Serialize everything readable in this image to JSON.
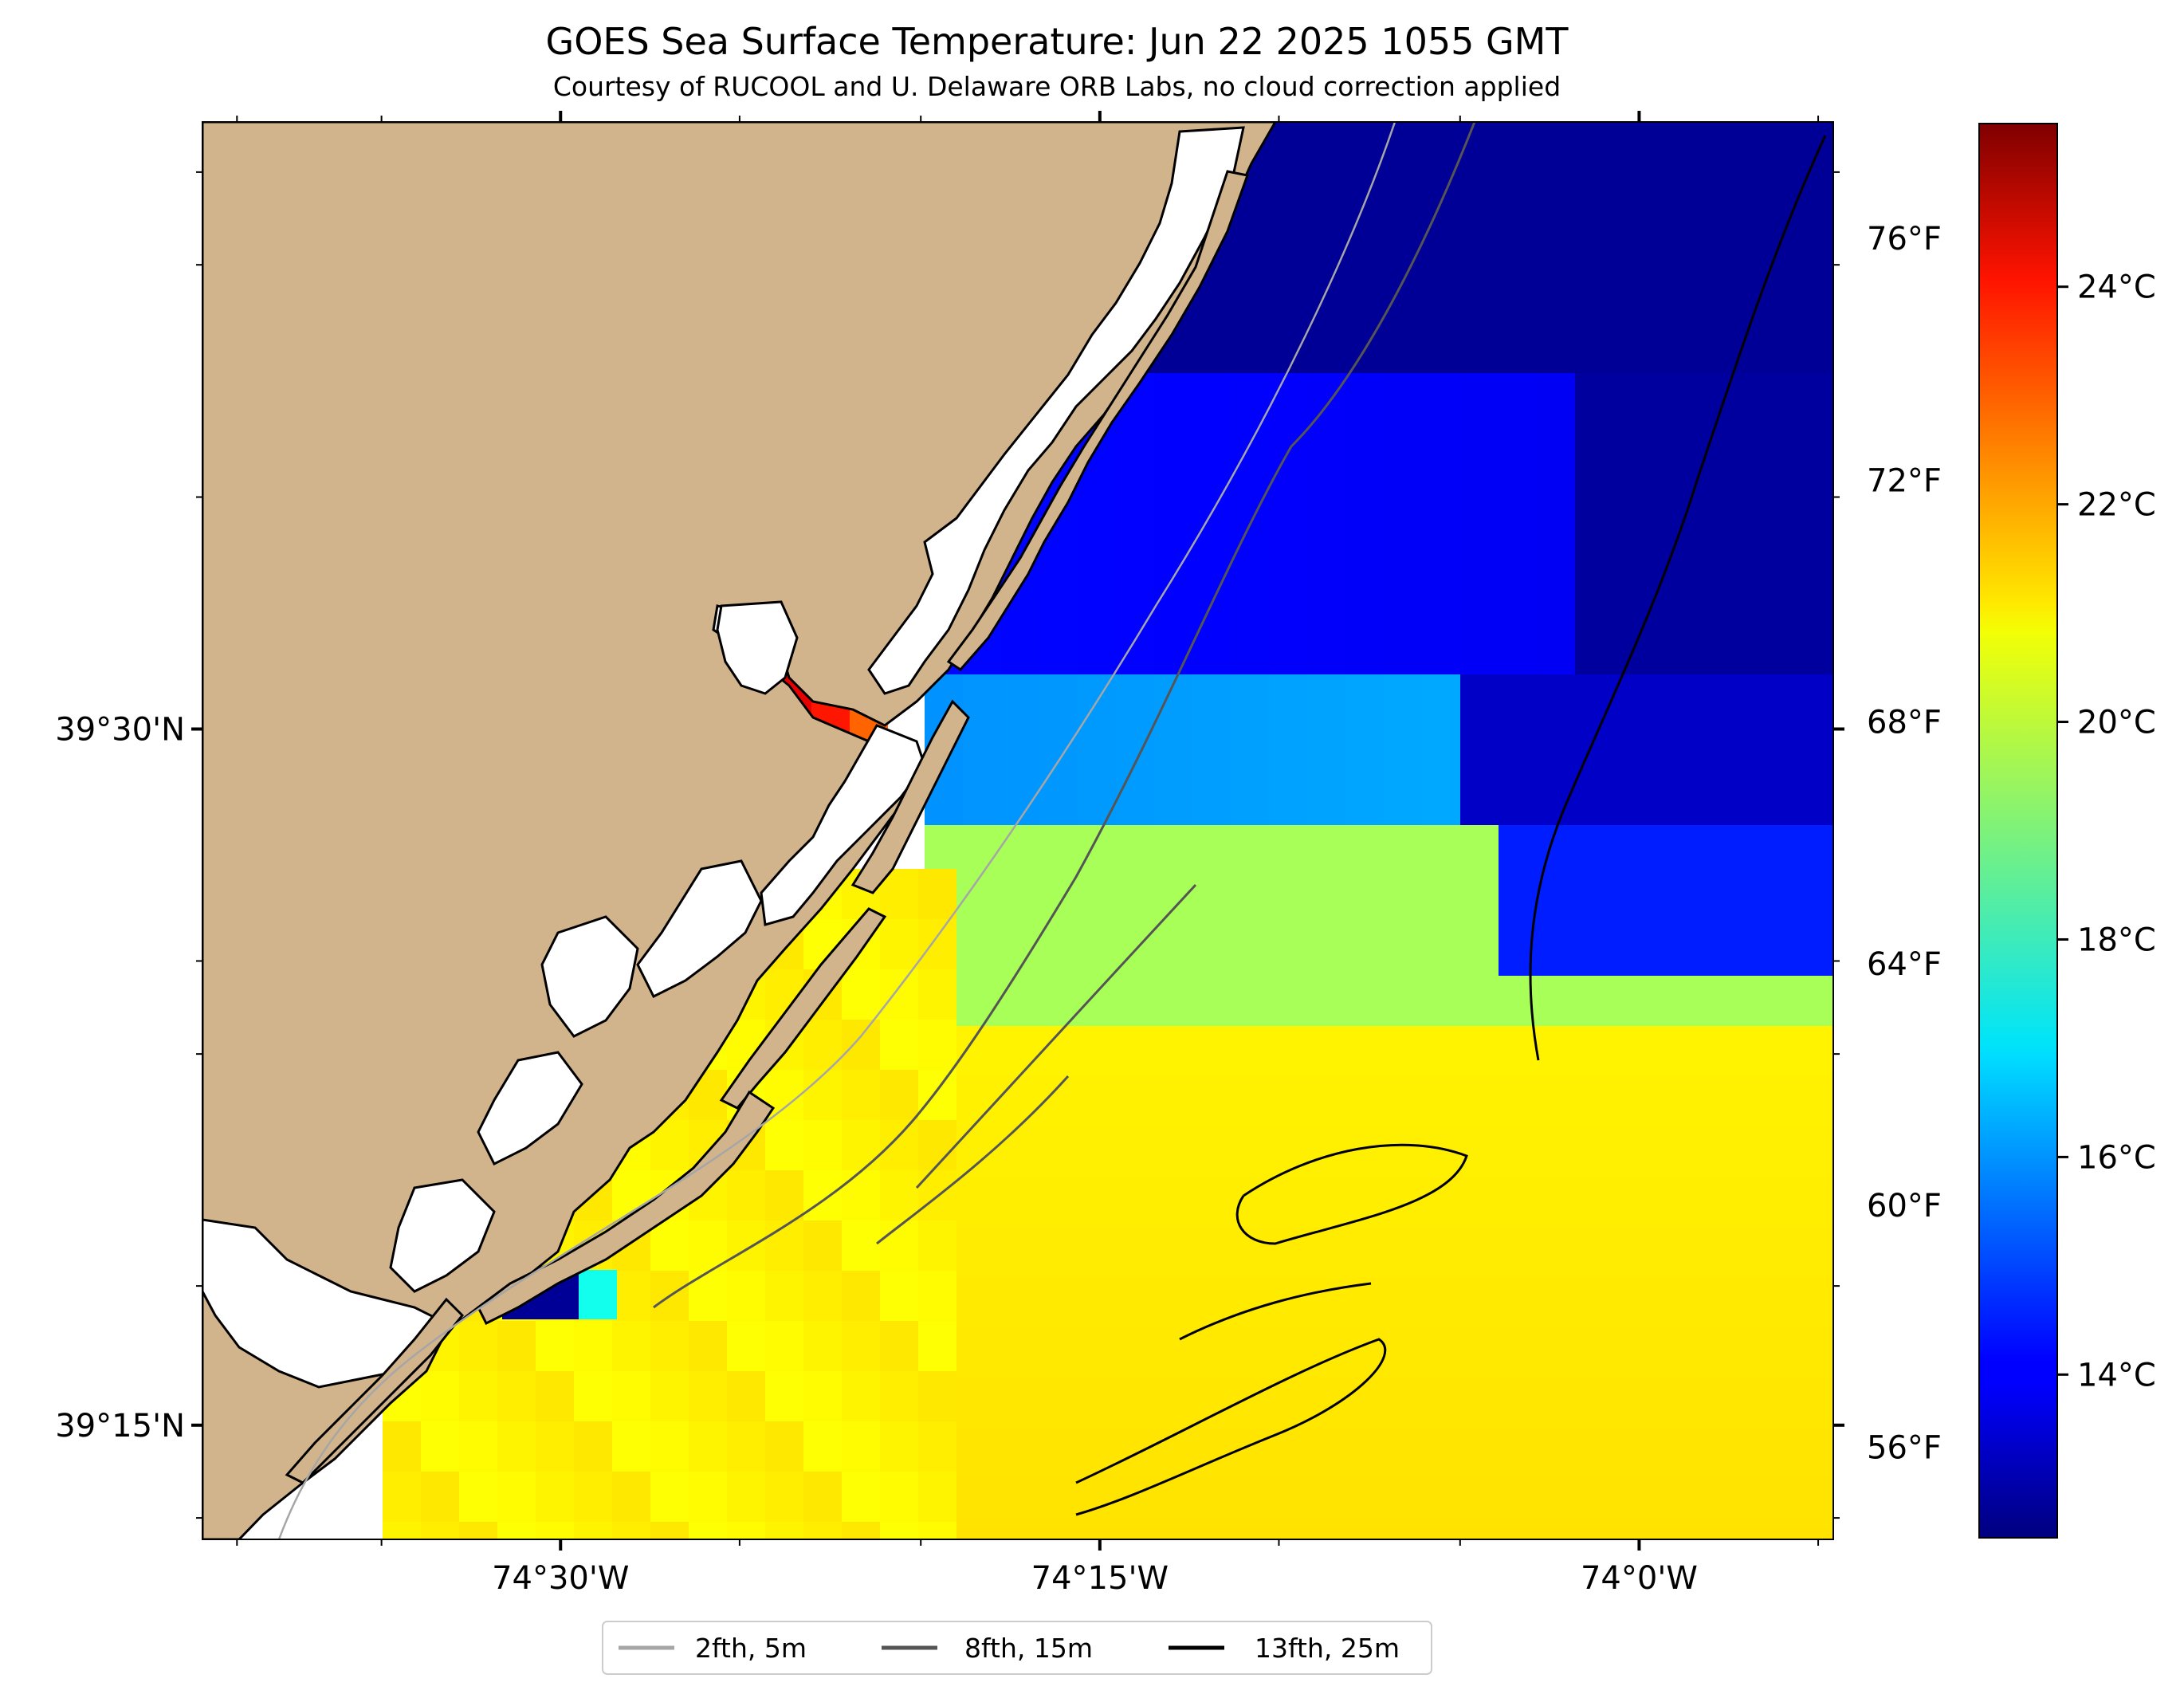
{
  "header": {
    "title": "GOES Sea Surface Temperature: Jun 22 2025 1055 GMT",
    "subtitle": "Courtesy of RUCOOL and U. Delaware ORB Labs, no cloud correction applied"
  },
  "axes": {
    "x_ticks": [
      {
        "lon": -74.5,
        "label": "74°30'W"
      },
      {
        "lon": -74.25,
        "label": "74°15'W"
      },
      {
        "lon": -74.0,
        "label": "74°0'W"
      }
    ],
    "y_ticks": [
      {
        "lat": 39.5,
        "label": "39°30'N"
      },
      {
        "lat": 39.25,
        "label": "39°15'N"
      }
    ],
    "lon_range": [
      -74.666,
      -73.91
    ],
    "lat_range": [
      39.209,
      39.718
    ]
  },
  "colorbar": {
    "vmin_c": 12.5,
    "vmax_c": 25.5,
    "celsius_ticks": [
      {
        "value": 14,
        "label": "14°C"
      },
      {
        "value": 16,
        "label": "16°C"
      },
      {
        "value": 18,
        "label": "18°C"
      },
      {
        "value": 20,
        "label": "20°C"
      },
      {
        "value": 22,
        "label": "22°C"
      },
      {
        "value": 24,
        "label": "24°C"
      }
    ],
    "fahrenheit_ticks": [
      {
        "value": 56,
        "label": "56°F"
      },
      {
        "value": 60,
        "label": "60°F"
      },
      {
        "value": 64,
        "label": "64°F"
      },
      {
        "value": 68,
        "label": "68°F"
      },
      {
        "value": 72,
        "label": "72°F"
      },
      {
        "value": 76,
        "label": "76°F"
      }
    ],
    "colormap": "jet"
  },
  "legend": {
    "placement": "bottom-center",
    "items": [
      {
        "label": "2fth, 5m",
        "color": "#a6a6a6"
      },
      {
        "label": "8fth, 15m",
        "color": "#555555"
      },
      {
        "label": "13fth, 25m",
        "color": "#000000"
      }
    ]
  },
  "colors": {
    "land": "#d2b48c",
    "no_data": "#ffffff",
    "coastline": "#000000"
  }
}
